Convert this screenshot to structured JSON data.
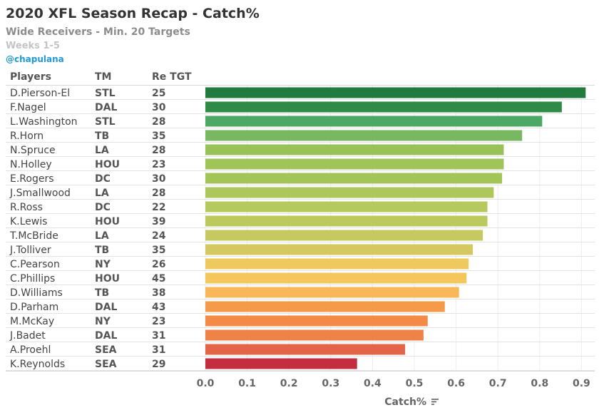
{
  "title": "2020 XFL Season Recap - Catch%",
  "subtitle": "Wide Receivers - Min. 20 Targets",
  "weeks": "Weeks 1-5",
  "handle": "@chapulana",
  "columns": {
    "players": "Players",
    "team": "TM",
    "targets": "Re TGT"
  },
  "icons": {
    "sort": "sort-icon"
  },
  "chart_data": {
    "type": "bar",
    "orientation": "horizontal",
    "xlabel": "Catch%",
    "xlim": [
      0,
      0.95
    ],
    "xticks": [
      0.0,
      0.1,
      0.2,
      0.3,
      0.4,
      0.5,
      0.6,
      0.7,
      0.8,
      0.9
    ],
    "xtick_labels": [
      "0.0",
      "0.1",
      "0.2",
      "0.3",
      "0.4",
      "0.5",
      "0.6",
      "0.7",
      "0.8",
      "0.9"
    ],
    "grid": true,
    "rows": [
      {
        "player": "D.Pierson-El",
        "team": "STL",
        "targets": "25",
        "value": 0.91,
        "color": "#217b3e"
      },
      {
        "player": "F.Nagel",
        "team": "DAL",
        "targets": "30",
        "value": 0.853,
        "color": "#2d8b45"
      },
      {
        "player": "L.Washington",
        "team": "STL",
        "targets": "28",
        "value": 0.806,
        "color": "#4ea865"
      },
      {
        "player": "R.Horn",
        "team": "TB",
        "targets": "35",
        "value": 0.758,
        "color": "#78b860"
      },
      {
        "player": "N.Spruce",
        "team": "LA",
        "targets": "28",
        "value": 0.714,
        "color": "#98c257"
      },
      {
        "player": "N.Holley",
        "team": "HOU",
        "targets": "23",
        "value": 0.714,
        "color": "#9fc458"
      },
      {
        "player": "E.Rogers",
        "team": "DC",
        "targets": "30",
        "value": 0.71,
        "color": "#a3c558"
      },
      {
        "player": "J.Smallwood",
        "team": "LA",
        "targets": "28",
        "value": 0.69,
        "color": "#adc75b"
      },
      {
        "player": "R.Ross",
        "team": "DC",
        "targets": "22",
        "value": 0.675,
        "color": "#b6c95c"
      },
      {
        "player": "K.Lewis",
        "team": "HOU",
        "targets": "39",
        "value": 0.675,
        "color": "#bcc95d"
      },
      {
        "player": "T.McBride",
        "team": "LA",
        "targets": "24",
        "value": 0.664,
        "color": "#c6c95f"
      },
      {
        "player": "J.Tolliver",
        "team": "TB",
        "targets": "35",
        "value": 0.64,
        "color": "#d3c960"
      },
      {
        "player": "C.Pearson",
        "team": "NY",
        "targets": "26",
        "value": 0.63,
        "color": "#efc95d"
      },
      {
        "player": "C.Phillips",
        "team": "HOU",
        "targets": "45",
        "value": 0.625,
        "color": "#f4c75d"
      },
      {
        "player": "D.Williams",
        "team": "TB",
        "targets": "38",
        "value": 0.607,
        "color": "#f8b85a"
      },
      {
        "player": "D.Parham",
        "team": "DAL",
        "targets": "43",
        "value": 0.573,
        "color": "#f59a48"
      },
      {
        "player": "M.McKay",
        "team": "NY",
        "targets": "23",
        "value": 0.532,
        "color": "#f38a45"
      },
      {
        "player": "J.Badet",
        "team": "DAL",
        "targets": "31",
        "value": 0.522,
        "color": "#ef8246"
      },
      {
        "player": "A.Proehl",
        "team": "SEA",
        "targets": "31",
        "value": 0.478,
        "color": "#e36446"
      },
      {
        "player": "K.Reynolds",
        "team": "SEA",
        "targets": "29",
        "value": 0.363,
        "color": "#c42c3f"
      }
    ]
  }
}
